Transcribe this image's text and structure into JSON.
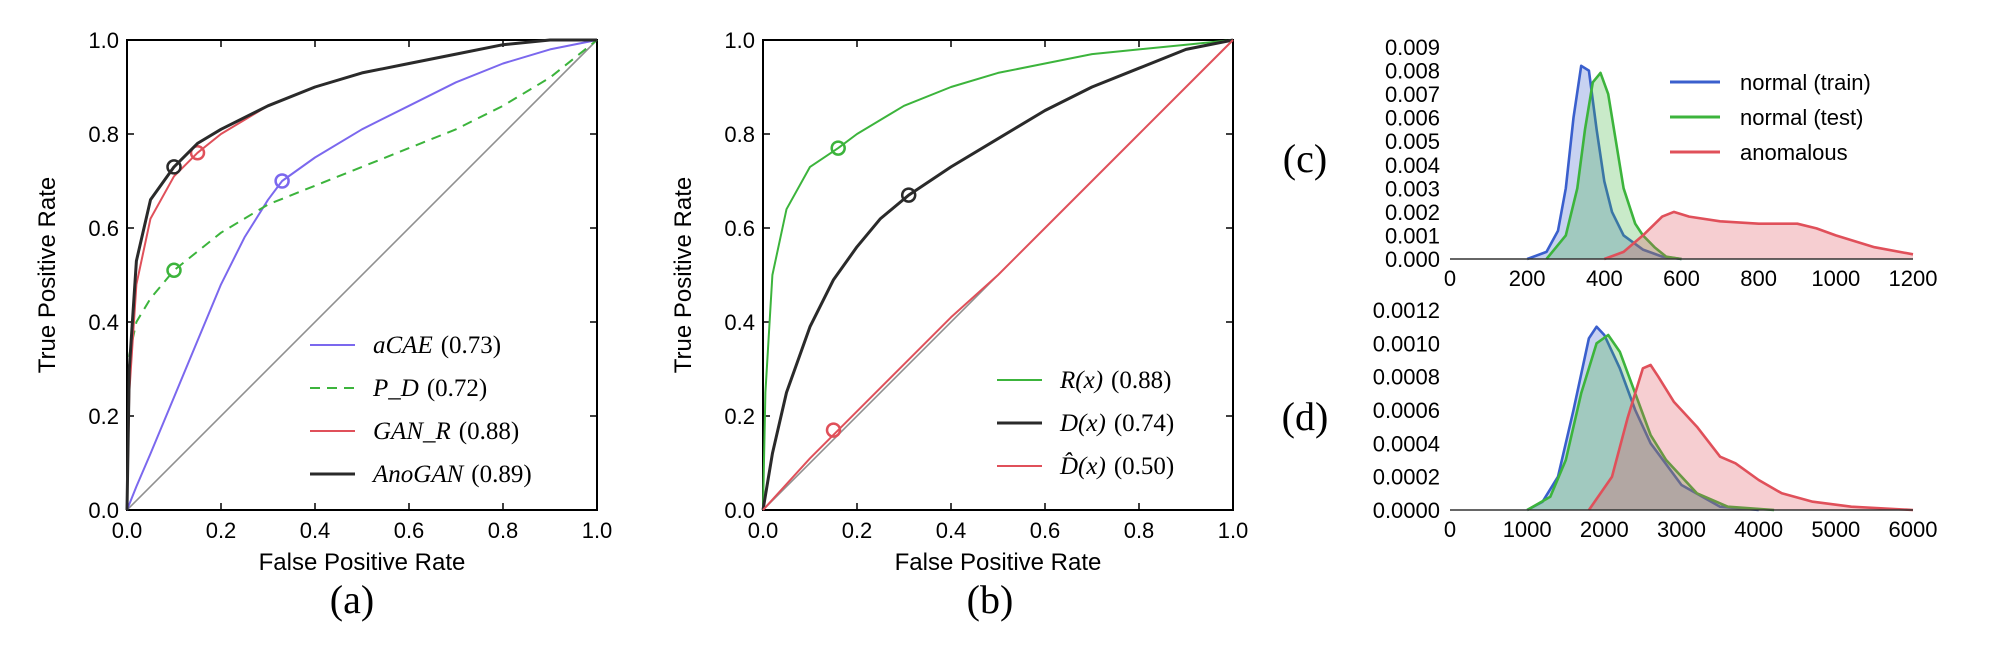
{
  "colors": {
    "purple": "#7b68ee",
    "green": "#3cb43c",
    "green_light": "#33cc33",
    "red": "#e0505a",
    "black": "#2a2a2a",
    "blue": "#3a5fcd",
    "diag": "#909090"
  },
  "chart_data": [
    {
      "id": "a",
      "type": "line",
      "panel_label": "(a)",
      "xlabel": "False Positive Rate",
      "ylabel": "True Positive Rate",
      "xlim": [
        0,
        1
      ],
      "ylim": [
        0,
        1
      ],
      "xticks": [
        "0.0",
        "0.2",
        "0.4",
        "0.6",
        "0.8",
        "1.0"
      ],
      "yticks": [
        "0.0",
        "0.2",
        "0.4",
        "0.6",
        "0.8",
        "1.0"
      ],
      "legend_position": "lower-right",
      "series": [
        {
          "name": "aCAE",
          "score": "(0.73)",
          "color": "#7b68ee",
          "dash": "solid",
          "width": 2,
          "x": [
            0,
            0.02,
            0.05,
            0.1,
            0.15,
            0.2,
            0.25,
            0.3,
            0.33,
            0.4,
            0.5,
            0.6,
            0.7,
            0.8,
            0.9,
            1.0
          ],
          "y": [
            0,
            0.05,
            0.12,
            0.24,
            0.36,
            0.48,
            0.58,
            0.66,
            0.7,
            0.75,
            0.81,
            0.86,
            0.91,
            0.95,
            0.98,
            1.0
          ],
          "marker": [
            0.33,
            0.7
          ]
        },
        {
          "name": "P_D",
          "score": "(0.72)",
          "color": "#3cb43c",
          "dash": "dashed",
          "width": 2,
          "x": [
            0,
            0.005,
            0.02,
            0.05,
            0.1,
            0.2,
            0.3,
            0.4,
            0.5,
            0.6,
            0.7,
            0.8,
            0.9,
            1.0
          ],
          "y": [
            0,
            0.33,
            0.4,
            0.45,
            0.51,
            0.59,
            0.65,
            0.69,
            0.73,
            0.77,
            0.81,
            0.86,
            0.92,
            1.0
          ],
          "marker": [
            0.1,
            0.51
          ]
        },
        {
          "name": "GAN_R",
          "score": "(0.88)",
          "color": "#e0505a",
          "dash": "solid",
          "width": 2,
          "x": [
            0,
            0.005,
            0.02,
            0.05,
            0.1,
            0.15,
            0.2,
            0.3,
            0.4,
            0.5,
            0.6,
            0.7,
            0.8,
            0.9,
            1.0
          ],
          "y": [
            0,
            0.25,
            0.48,
            0.62,
            0.71,
            0.76,
            0.8,
            0.86,
            0.9,
            0.93,
            0.95,
            0.97,
            0.99,
            1.0,
            1.0
          ],
          "marker": [
            0.15,
            0.76
          ]
        },
        {
          "name": "AnoGAN",
          "score": "(0.89)",
          "color": "#2a2a2a",
          "dash": "solid",
          "width": 3,
          "x": [
            0,
            0.005,
            0.02,
            0.05,
            0.1,
            0.15,
            0.2,
            0.3,
            0.4,
            0.5,
            0.6,
            0.7,
            0.8,
            0.9,
            1.0
          ],
          "y": [
            0,
            0.3,
            0.53,
            0.66,
            0.73,
            0.78,
            0.81,
            0.86,
            0.9,
            0.93,
            0.95,
            0.97,
            0.99,
            1.0,
            1.0
          ],
          "marker": [
            0.1,
            0.73
          ]
        }
      ]
    },
    {
      "id": "b",
      "type": "line",
      "panel_label": "(b)",
      "xlabel": "False Positive Rate",
      "ylabel": "True Positive Rate",
      "xlim": [
        0,
        1
      ],
      "ylim": [
        0,
        1
      ],
      "xticks": [
        "0.0",
        "0.2",
        "0.4",
        "0.6",
        "0.8",
        "1.0"
      ],
      "yticks": [
        "0.0",
        "0.2",
        "0.4",
        "0.6",
        "0.8",
        "1.0"
      ],
      "legend_position": "lower-right",
      "series": [
        {
          "name": "R(x)",
          "score": "(0.88)",
          "color": "#3cb43c",
          "dash": "solid",
          "width": 2,
          "x": [
            0,
            0.005,
            0.02,
            0.05,
            0.1,
            0.16,
            0.2,
            0.3,
            0.4,
            0.5,
            0.6,
            0.7,
            0.8,
            0.9,
            1.0
          ],
          "y": [
            0,
            0.25,
            0.5,
            0.64,
            0.73,
            0.77,
            0.8,
            0.86,
            0.9,
            0.93,
            0.95,
            0.97,
            0.98,
            0.99,
            1.0
          ],
          "marker": [
            0.16,
            0.77
          ]
        },
        {
          "name": "D(x)",
          "score": "(0.74)",
          "color": "#2a2a2a",
          "dash": "solid",
          "width": 3,
          "x": [
            0,
            0.02,
            0.05,
            0.1,
            0.15,
            0.2,
            0.25,
            0.31,
            0.4,
            0.5,
            0.6,
            0.7,
            0.8,
            0.9,
            1.0
          ],
          "y": [
            0,
            0.12,
            0.25,
            0.39,
            0.49,
            0.56,
            0.62,
            0.67,
            0.73,
            0.79,
            0.85,
            0.9,
            0.94,
            0.98,
            1.0
          ],
          "marker": [
            0.31,
            0.67
          ]
        },
        {
          "name": "D̂(x)",
          "score": "(0.50)",
          "color": "#e0505a",
          "dash": "solid",
          "width": 2,
          "x": [
            0,
            0.1,
            0.2,
            0.3,
            0.4,
            0.5,
            0.6,
            0.7,
            0.8,
            0.9,
            1.0
          ],
          "y": [
            0,
            0.11,
            0.21,
            0.31,
            0.41,
            0.5,
            0.6,
            0.7,
            0.8,
            0.9,
            1.0
          ],
          "marker": [
            0.15,
            0.17
          ]
        }
      ]
    },
    {
      "id": "c",
      "type": "area",
      "panel_label": "(c)",
      "xlim": [
        0,
        1200
      ],
      "ylim": [
        0,
        0.009
      ],
      "xticks": [
        "0",
        "200",
        "400",
        "600",
        "800",
        "1000",
        "1200"
      ],
      "yticks": [
        "0.000",
        "0.001",
        "0.002",
        "0.003",
        "0.004",
        "0.005",
        "0.006",
        "0.007",
        "0.008",
        "0.009"
      ],
      "legend_position": "top-right",
      "series": [
        {
          "name": "normal (train)",
          "color": "#3a5fcd",
          "x": [
            200,
            250,
            280,
            300,
            320,
            340,
            360,
            380,
            400,
            420,
            450,
            500,
            550,
            600
          ],
          "y": [
            0,
            0.0003,
            0.0012,
            0.003,
            0.006,
            0.0082,
            0.008,
            0.0055,
            0.0033,
            0.002,
            0.001,
            0.0004,
            0.0001,
            0
          ]
        },
        {
          "name": "normal (test)",
          "color": "#3cb43c",
          "x": [
            250,
            300,
            330,
            350,
            370,
            390,
            410,
            430,
            450,
            480,
            500,
            530,
            560,
            600
          ],
          "y": [
            0,
            0.001,
            0.003,
            0.0055,
            0.0075,
            0.0079,
            0.007,
            0.005,
            0.003,
            0.0015,
            0.001,
            0.0005,
            0.0001,
            0
          ]
        },
        {
          "name": "anomalous",
          "color": "#e0505a",
          "x": [
            400,
            450,
            500,
            550,
            580,
            620,
            700,
            800,
            900,
            950,
            1000,
            1100,
            1200
          ],
          "y": [
            0,
            0.0003,
            0.001,
            0.0018,
            0.002,
            0.0018,
            0.0016,
            0.0015,
            0.0015,
            0.0013,
            0.001,
            0.0005,
            0.0002
          ]
        }
      ]
    },
    {
      "id": "d",
      "type": "area",
      "panel_label": "(d)",
      "xlim": [
        0,
        6000
      ],
      "ylim": [
        0,
        0.0012
      ],
      "xticks": [
        "0",
        "1000",
        "2000",
        "3000",
        "4000",
        "5000",
        "6000"
      ],
      "yticks": [
        "0.0000",
        "0.0002",
        "0.0004",
        "0.0006",
        "0.0008",
        "0.0010",
        "0.0012"
      ],
      "series": [
        {
          "name": "normal (train)",
          "color": "#3a5fcd",
          "x": [
            1000,
            1200,
            1400,
            1600,
            1800,
            1900,
            2000,
            2200,
            2400,
            2600,
            3000,
            3500,
            4000
          ],
          "y": [
            0,
            5e-05,
            0.0002,
            0.0006,
            0.00103,
            0.0011,
            0.00105,
            0.00085,
            0.0006,
            0.0004,
            0.00015,
            2e-05,
            0
          ]
        },
        {
          "name": "normal (test)",
          "color": "#3cb43c",
          "x": [
            1000,
            1300,
            1500,
            1700,
            1900,
            2050,
            2200,
            2400,
            2600,
            2800,
            3200,
            3600,
            4200
          ],
          "y": [
            0,
            8e-05,
            0.0003,
            0.0007,
            0.001,
            0.00105,
            0.00095,
            0.0007,
            0.00045,
            0.0003,
            0.0001,
            2e-05,
            0
          ]
        },
        {
          "name": "anomalous",
          "color": "#e0505a",
          "x": [
            1800,
            2100,
            2300,
            2500,
            2600,
            2700,
            2900,
            3200,
            3500,
            3700,
            4000,
            4300,
            4700,
            5200,
            6000
          ],
          "y": [
            0,
            0.0002,
            0.00055,
            0.00085,
            0.00087,
            0.0008,
            0.00065,
            0.0005,
            0.00032,
            0.00028,
            0.00018,
            0.0001,
            5e-05,
            2e-05,
            0
          ]
        }
      ]
    }
  ]
}
